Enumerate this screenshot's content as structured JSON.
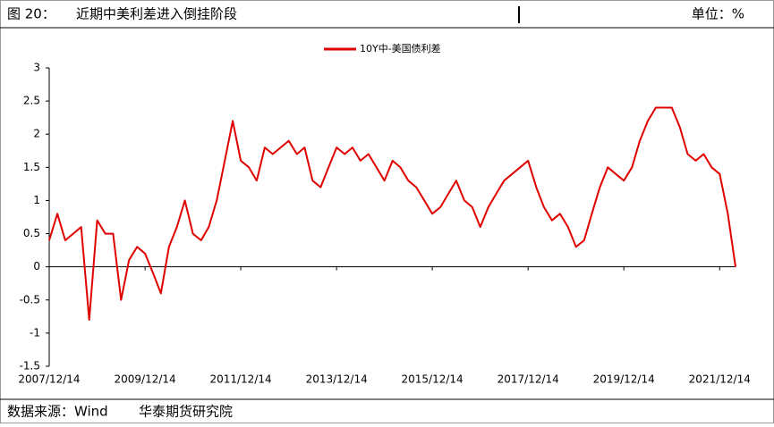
{
  "chart_data": {
    "type": "line",
    "figure_label": "图 20：",
    "title": "近期中美利差进入倒挂阶段",
    "unit_label": "单位：%",
    "source": "数据来源：Wind",
    "publisher": "华泰期货研究院",
    "x": [
      "2007/12/14",
      "2008/02/14",
      "2008/04/14",
      "2008/06/14",
      "2008/08/14",
      "2008/10/14",
      "2008/12/14",
      "2009/02/14",
      "2009/04/14",
      "2009/06/14",
      "2009/08/14",
      "2009/10/14",
      "2009/12/14",
      "2010/02/14",
      "2010/04/14",
      "2010/06/14",
      "2010/08/14",
      "2010/10/14",
      "2010/12/14",
      "2011/02/14",
      "2011/04/14",
      "2011/06/14",
      "2011/08/14",
      "2011/10/14",
      "2011/12/14",
      "2012/02/14",
      "2012/04/14",
      "2012/06/14",
      "2012/08/14",
      "2012/10/14",
      "2012/12/14",
      "2013/02/14",
      "2013/04/14",
      "2013/06/14",
      "2013/08/14",
      "2013/10/14",
      "2013/12/14",
      "2014/02/14",
      "2014/04/14",
      "2014/06/14",
      "2014/08/14",
      "2014/10/14",
      "2014/12/14",
      "2015/02/14",
      "2015/04/14",
      "2015/06/14",
      "2015/08/14",
      "2015/10/14",
      "2015/12/14",
      "2016/02/14",
      "2016/04/14",
      "2016/06/14",
      "2016/08/14",
      "2016/10/14",
      "2016/12/14",
      "2017/02/14",
      "2017/04/14",
      "2017/06/14",
      "2017/08/14",
      "2017/10/14",
      "2017/12/14",
      "2018/02/14",
      "2018/04/14",
      "2018/06/14",
      "2018/08/14",
      "2018/10/14",
      "2018/12/14",
      "2019/02/14",
      "2019/04/14",
      "2019/06/14",
      "2019/08/14",
      "2019/10/14",
      "2019/12/14",
      "2020/02/14",
      "2020/04/14",
      "2020/06/14",
      "2020/08/14",
      "2020/10/14",
      "2020/12/14",
      "2021/02/14",
      "2021/04/14",
      "2021/06/14",
      "2021/08/14",
      "2021/10/14",
      "2021/12/14",
      "2022/02/14",
      "2022/04/14"
    ],
    "series": [
      {
        "name": "10Y中-美国债利差",
        "color": "#e00000",
        "values": [
          0.4,
          0.8,
          0.4,
          0.5,
          0.6,
          -0.8,
          0.7,
          0.5,
          0.5,
          -0.5,
          0.1,
          0.3,
          0.2,
          -0.1,
          -0.4,
          0.3,
          0.6,
          1.0,
          0.5,
          0.4,
          0.6,
          1.0,
          1.6,
          2.2,
          1.6,
          1.5,
          1.3,
          1.8,
          1.7,
          1.8,
          1.9,
          1.7,
          1.8,
          1.3,
          1.2,
          1.5,
          1.8,
          1.7,
          1.8,
          1.6,
          1.7,
          1.5,
          1.3,
          1.6,
          1.5,
          1.3,
          1.2,
          1.0,
          0.8,
          0.9,
          1.1,
          1.3,
          1.0,
          0.9,
          0.6,
          0.9,
          1.1,
          1.3,
          1.4,
          1.5,
          1.6,
          1.2,
          0.9,
          0.7,
          0.8,
          0.6,
          0.3,
          0.4,
          0.8,
          1.2,
          1.5,
          1.4,
          1.3,
          1.5,
          1.9,
          2.2,
          2.4,
          2.4,
          2.4,
          2.1,
          1.7,
          1.6,
          1.7,
          1.5,
          1.4,
          0.8,
          0.0
        ]
      }
    ],
    "xlim": [
      "2007/12/14",
      "2022/04/14"
    ],
    "xticks": [
      "2007/12/14",
      "2009/12/14",
      "2011/12/14",
      "2013/12/14",
      "2015/12/14",
      "2017/12/14",
      "2019/12/14",
      "2021/12/14"
    ],
    "ylim": [
      -1.5,
      3
    ],
    "yticks": [
      3,
      2.5,
      2,
      1.5,
      1,
      0.5,
      0,
      -0.5,
      -1,
      -1.5
    ],
    "grid": false,
    "legend": "top"
  }
}
